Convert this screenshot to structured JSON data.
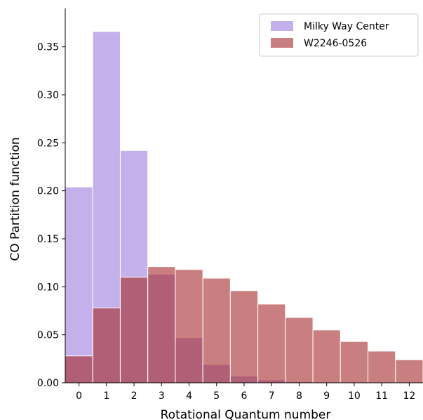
{
  "chart_data": {
    "type": "bar",
    "xlabel": "Rotational Quantum number",
    "ylabel": "CO Partition function",
    "categories": [
      "0",
      "1",
      "2",
      "3",
      "4",
      "5",
      "6",
      "7",
      "8",
      "9",
      "10",
      "11",
      "12"
    ],
    "xlim": [
      -0.5,
      12.5
    ],
    "ylim": [
      0,
      0.39
    ],
    "yticks": [
      0.0,
      0.05,
      0.1,
      0.15,
      0.2,
      0.25,
      0.3,
      0.35
    ],
    "ytick_labels": [
      "0.00",
      "0.05",
      "0.10",
      "0.15",
      "0.20",
      "0.25",
      "0.30",
      "0.35"
    ],
    "grid": false,
    "legend_position": "top-right",
    "series": [
      {
        "name": "Milky Way Center",
        "color": "#9370DB",
        "opacity": 0.55,
        "values": [
          0.204,
          0.366,
          0.242,
          0.113,
          0.047,
          0.019,
          0.007,
          0.003,
          0.001,
          0.0,
          0.0,
          0.0,
          0.0
        ]
      },
      {
        "name": "W2246-0526",
        "color": "#A52A2A",
        "opacity": 0.6,
        "values": [
          0.028,
          0.078,
          0.11,
          0.121,
          0.118,
          0.109,
          0.096,
          0.082,
          0.068,
          0.055,
          0.043,
          0.033,
          0.024
        ]
      }
    ]
  }
}
